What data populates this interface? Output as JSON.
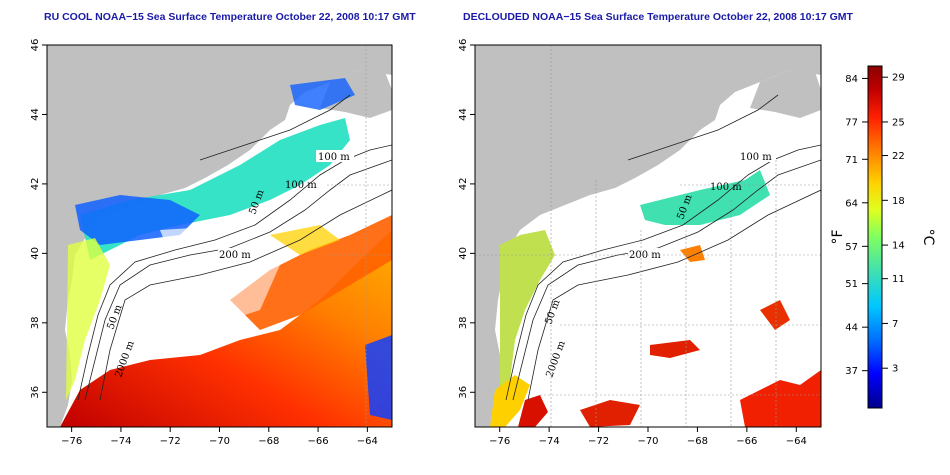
{
  "panels": [
    {
      "title": "RU COOL NOAA−15 Sea Surface Temperature October 22, 2008 10:17 GMT"
    },
    {
      "title": "DECLOUDED NOAA−15 Sea Surface Temperature October 22, 2008 10:17 GMT"
    }
  ],
  "lon_ticks": [
    "−76",
    "−74",
    "−72",
    "−70",
    "−68",
    "−66",
    "−64"
  ],
  "lat_ticks": [
    "36",
    "38",
    "40",
    "42",
    "44",
    "46"
  ],
  "colorbar": {
    "f_unit": "°F",
    "c_unit": "°C",
    "f_ticks": [
      "84",
      "77",
      "71",
      "64",
      "57",
      "51",
      "44",
      "37"
    ],
    "c_ticks": [
      "29",
      "25",
      "22",
      "18",
      "14",
      "11",
      "7",
      "3"
    ],
    "colors": [
      "#00008b",
      "#0000ff",
      "#0070ff",
      "#00c8ff",
      "#40e0b0",
      "#80ff60",
      "#e0ff20",
      "#ffd000",
      "#ff8000",
      "#ff2000",
      "#c00000",
      "#8b0000"
    ]
  },
  "contour_labels": {
    "left": [
      "100 m",
      "100 m",
      "50 m",
      "200 m",
      "50 m",
      "2000 m"
    ],
    "right": [
      "100 m",
      "100 m",
      "50 m",
      "200 m",
      "50 m",
      "2000 m"
    ]
  },
  "colors": {
    "land": "#c0c0c0",
    "title": "#1a1aa8",
    "ocean": "#ffffff"
  }
}
